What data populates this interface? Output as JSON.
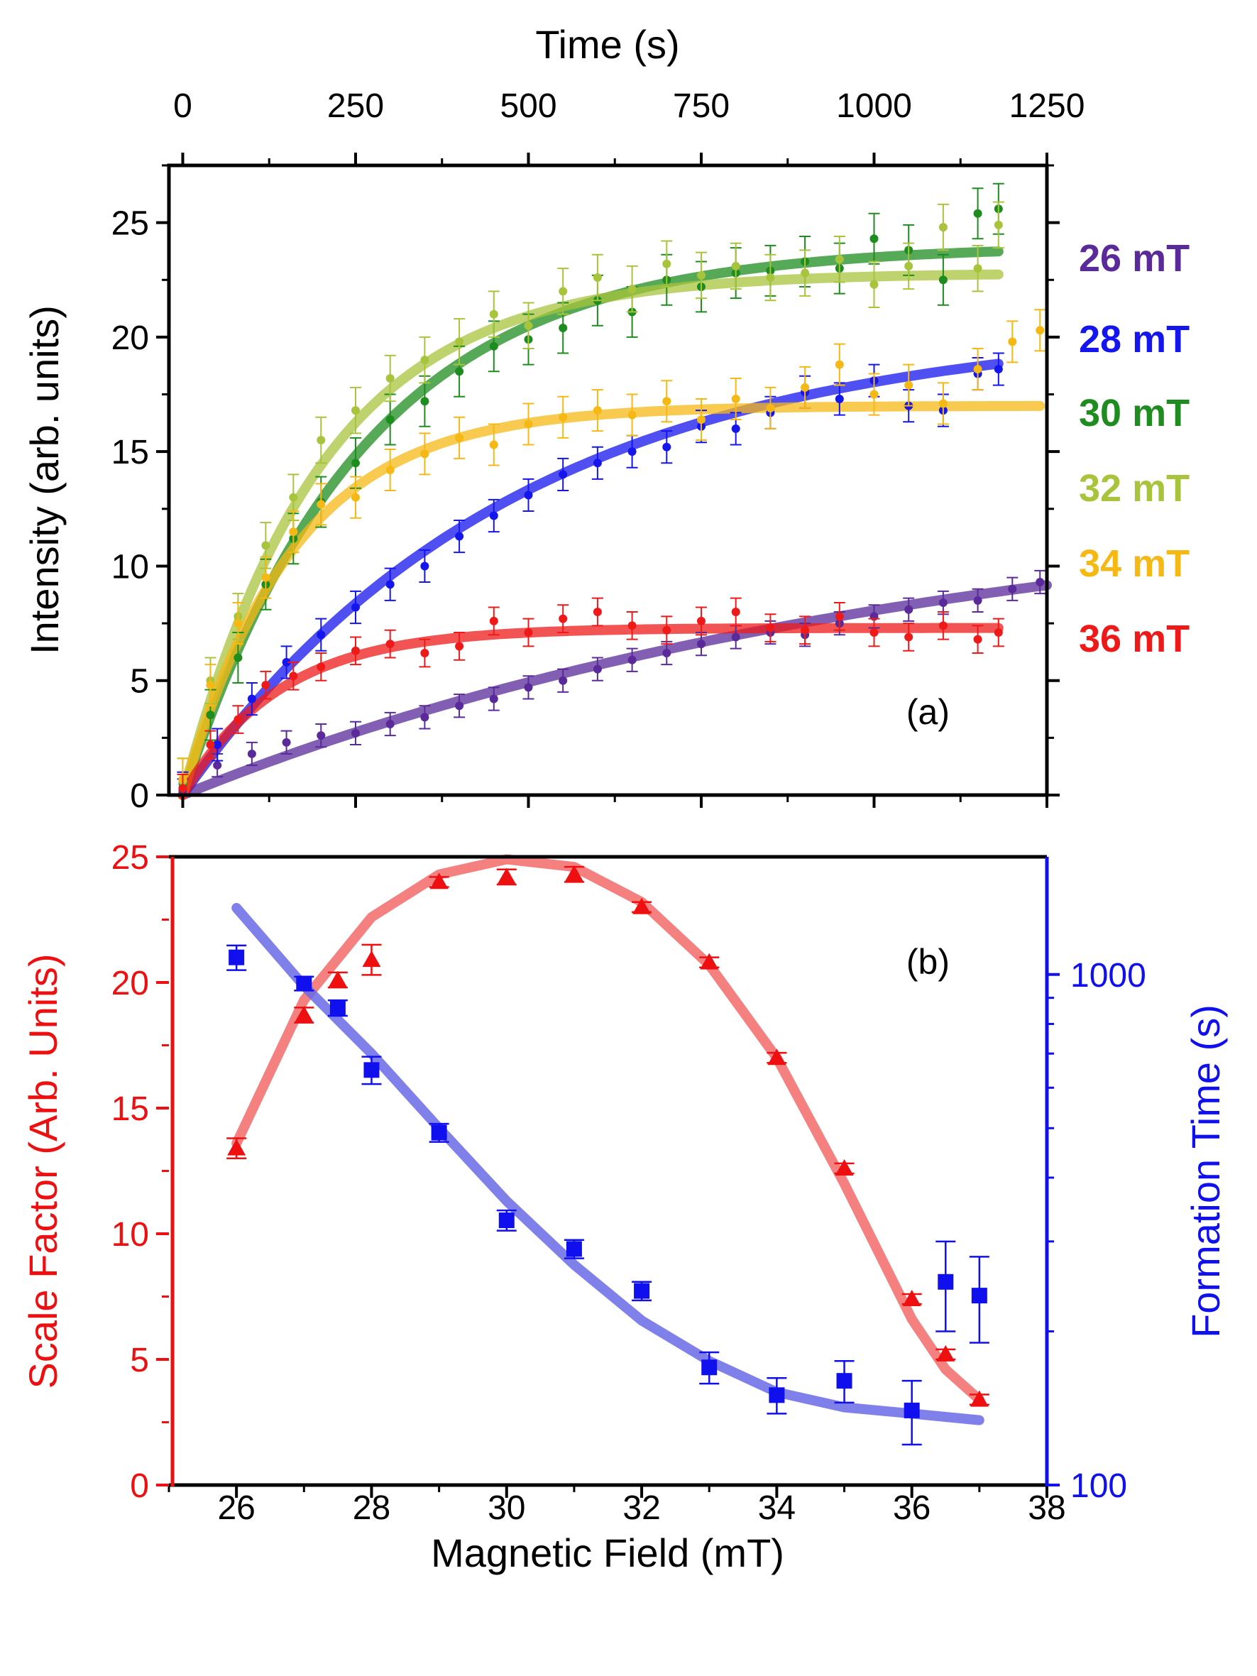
{
  "chart_data": [
    {
      "panel_id": "a",
      "type": "scatter",
      "panel_label": "(a)",
      "xlabel": "Time (s)",
      "ylabel": "Intensity (arb. units)",
      "xlim": [
        -20,
        1250
      ],
      "ylim": [
        0,
        27.5
      ],
      "xticks": [
        0,
        250,
        500,
        750,
        1000,
        1250
      ],
      "xtick_labels": [
        "0",
        "250",
        "500",
        "750",
        "1000",
        "1250"
      ],
      "yticks": [
        0,
        5,
        10,
        15,
        20,
        25
      ],
      "ytick_labels": [
        "0",
        "5",
        "10",
        "15",
        "20",
        "25"
      ],
      "legend": {
        "position": "right-outside",
        "entries": [
          "26 mT",
          "28 mT",
          "30 mT",
          "32 mT",
          "34 mT",
          "36 mT"
        ]
      },
      "series": [
        {
          "name": "26 mT",
          "color": "#5a2a9a",
          "fit": {
            "model": "saturating_exp",
            "amplitude": 13.5,
            "tau": 1100,
            "t_max": 1250
          },
          "x": [
            0,
            50,
            100,
            150,
            200,
            250,
            300,
            350,
            400,
            450,
            500,
            550,
            600,
            650,
            700,
            750,
            800,
            850,
            900,
            950,
            1000,
            1050,
            1100,
            1150,
            1200,
            1240
          ],
          "y": [
            0.2,
            1.3,
            1.8,
            2.3,
            2.6,
            2.7,
            3.1,
            3.4,
            3.9,
            4.2,
            4.7,
            5.0,
            5.5,
            5.9,
            6.2,
            6.6,
            6.9,
            7.1,
            7.0,
            7.5,
            7.8,
            8.1,
            8.4,
            8.5,
            9.0,
            9.3
          ],
          "err": 0.5
        },
        {
          "name": "28 mT",
          "color": "#1515ee",
          "fit": {
            "model": "saturating_exp",
            "amplitude": 20.6,
            "tau": 480,
            "t_max": 1180
          },
          "x": [
            0,
            50,
            100,
            150,
            200,
            250,
            300,
            350,
            400,
            450,
            500,
            550,
            600,
            650,
            700,
            750,
            800,
            850,
            900,
            950,
            1000,
            1050,
            1100,
            1150,
            1180
          ],
          "y": [
            0.3,
            2.2,
            4.2,
            5.8,
            7.0,
            8.2,
            9.2,
            10.0,
            11.3,
            12.2,
            13.1,
            14.0,
            14.5,
            15.0,
            15.2,
            16.1,
            16.0,
            16.7,
            17.6,
            17.3,
            18.1,
            17.0,
            16.8,
            18.4,
            18.6
          ],
          "err": 0.7
        },
        {
          "name": "30 mT",
          "color": "#1e8c1e",
          "fit": {
            "model": "saturating_exp",
            "amplitude": 24.0,
            "tau": 260,
            "t_max": 1180
          },
          "x": [
            0,
            40,
            80,
            120,
            160,
            200,
            250,
            300,
            350,
            400,
            450,
            500,
            550,
            600,
            650,
            700,
            750,
            800,
            850,
            900,
            950,
            1000,
            1050,
            1100,
            1150,
            1180
          ],
          "y": [
            0.5,
            3.5,
            6.0,
            9.2,
            11.2,
            12.8,
            14.5,
            16.4,
            17.2,
            18.5,
            19.6,
            19.9,
            20.4,
            21.6,
            21.1,
            22.5,
            22.2,
            22.8,
            22.9,
            23.3,
            23.0,
            24.3,
            23.8,
            22.5,
            25.4,
            25.6
          ],
          "err": 1.1
        },
        {
          "name": "32 mT",
          "color": "#a8c43c",
          "fit": {
            "model": "saturating_exp",
            "amplitude": 22.8,
            "tau": 200,
            "t_max": 1180
          },
          "x": [
            0,
            40,
            80,
            120,
            160,
            200,
            250,
            300,
            350,
            400,
            450,
            500,
            550,
            600,
            650,
            700,
            750,
            800,
            850,
            900,
            950,
            1000,
            1050,
            1100,
            1150,
            1180
          ],
          "y": [
            0.6,
            5.0,
            7.8,
            10.9,
            13.0,
            15.5,
            16.8,
            18.2,
            19.0,
            19.8,
            21.0,
            20.5,
            22.0,
            22.6,
            22.1,
            23.2,
            22.7,
            23.1,
            22.6,
            22.8,
            23.4,
            22.3,
            23.1,
            24.8,
            23.0,
            24.9
          ],
          "err": 1.0
        },
        {
          "name": "34 mT",
          "color": "#f5b815",
          "fit": {
            "model": "saturating_exp",
            "amplitude": 17.0,
            "tau": 160,
            "t_max": 1240
          },
          "x": [
            0,
            40,
            80,
            120,
            160,
            200,
            250,
            300,
            350,
            400,
            450,
            500,
            550,
            600,
            650,
            700,
            750,
            800,
            850,
            900,
            950,
            1000,
            1050,
            1100,
            1150,
            1200,
            1240
          ],
          "y": [
            0.7,
            4.8,
            7.5,
            9.5,
            11.5,
            12.7,
            13.0,
            14.2,
            14.9,
            15.6,
            15.3,
            16.2,
            16.5,
            16.8,
            16.6,
            17.2,
            16.4,
            17.3,
            16.9,
            17.8,
            18.8,
            17.5,
            17.9,
            17.1,
            18.6,
            19.8,
            20.3
          ],
          "err": 0.9
        },
        {
          "name": "36 mT",
          "color": "#ee1a1a",
          "fit": {
            "model": "saturating_exp",
            "amplitude": 7.3,
            "tau": 140,
            "t_max": 1180
          },
          "x": [
            0,
            40,
            80,
            120,
            160,
            200,
            250,
            300,
            350,
            400,
            450,
            500,
            550,
            600,
            650,
            700,
            750,
            800,
            850,
            900,
            950,
            1000,
            1050,
            1100,
            1150,
            1180
          ],
          "y": [
            0.3,
            2.2,
            3.3,
            4.8,
            5.2,
            5.6,
            6.3,
            6.6,
            6.2,
            6.5,
            7.6,
            7.1,
            7.7,
            8.0,
            7.4,
            7.2,
            7.6,
            8.0,
            7.3,
            7.2,
            7.8,
            7.1,
            6.9,
            7.4,
            6.8,
            7.1
          ],
          "err": 0.6
        }
      ]
    },
    {
      "panel_id": "b",
      "type": "scatter",
      "panel_label": "(b)",
      "xlabel": "Magnetic Field (mT)",
      "ylabel_left": "Scale Factor (Arb. Units)",
      "ylabel_right": "Formation Time (s)",
      "xlim": [
        25,
        38
      ],
      "ylim_left": [
        0,
        25
      ],
      "ylim_right": [
        100,
        1700
      ],
      "yscale_right": "log",
      "xticks": [
        26,
        28,
        30,
        32,
        34,
        36,
        38
      ],
      "xtick_labels": [
        "26",
        "28",
        "30",
        "32",
        "34",
        "36",
        "38"
      ],
      "yticks_left": [
        0,
        5,
        10,
        15,
        20,
        25
      ],
      "ytick_labels_left": [
        "0",
        "5",
        "10",
        "15",
        "20",
        "25"
      ],
      "yticks_right_major": [
        100,
        1000
      ],
      "ytick_labels_right": [
        "100",
        "1000"
      ],
      "series": [
        {
          "name": "Scale Factor",
          "axis": "left",
          "marker": "triangle",
          "color": "#ee1010",
          "fit_color": "#f26a6a",
          "x": [
            26,
            27,
            27.5,
            28,
            29,
            30,
            31,
            32,
            33,
            34,
            35,
            36,
            36.5,
            37
          ],
          "y": [
            13.4,
            18.7,
            20.1,
            20.9,
            24.0,
            24.2,
            24.3,
            23.0,
            20.8,
            17.0,
            12.6,
            7.4,
            5.2,
            3.4
          ],
          "err": [
            0.4,
            0.3,
            0.3,
            0.6,
            0.2,
            0.3,
            0.3,
            0.2,
            0.2,
            0.2,
            0.2,
            0.2,
            0.2,
            0.2
          ],
          "fit": {
            "x": [
              26,
              27,
              28,
              29,
              30,
              31,
              32,
              33,
              34,
              35,
              36,
              36.5,
              37
            ],
            "y": [
              13.6,
              19.3,
              22.6,
              24.3,
              24.9,
              24.6,
              23.2,
              20.7,
              17.0,
              12.0,
              6.6,
              4.6,
              3.4
            ]
          }
        },
        {
          "name": "Formation Time",
          "axis": "right",
          "marker": "square",
          "color": "#1010ee",
          "fit_color": "#6a6ae6",
          "x": [
            26,
            27,
            27.5,
            28,
            29,
            30,
            31,
            32,
            33,
            34,
            35,
            36,
            36.5,
            37
          ],
          "y": [
            1080,
            960,
            860,
            650,
            490,
            330,
            290,
            240,
            170,
            150,
            160,
            140,
            250,
            235
          ],
          "err": [
            60,
            30,
            30,
            40,
            20,
            15,
            12,
            10,
            12,
            12,
            15,
            20,
            50,
            45
          ],
          "fit": {
            "x": [
              26,
              27,
              28,
              29,
              30,
              31,
              32,
              33,
              34,
              35,
              36,
              37
            ],
            "y": [
              1350,
              950,
              700,
              500,
              360,
              270,
              210,
              175,
              152,
              142,
              138,
              134
            ]
          }
        }
      ]
    }
  ]
}
